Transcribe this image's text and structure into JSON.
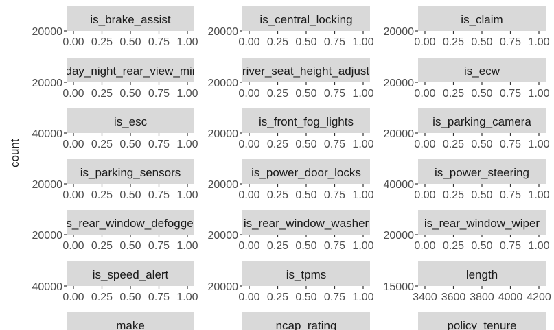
{
  "chart_data": {
    "type": "bar",
    "ylabel": "count",
    "facets": [
      {
        "strip": "is_brake_assist",
        "ytick": "20000",
        "xticks": [
          "0.00",
          "0.25",
          "0.50",
          "0.75",
          "1.00"
        ]
      },
      {
        "strip": "is_central_locking",
        "ytick": "20000",
        "xticks": [
          "0.00",
          "0.25",
          "0.50",
          "0.75",
          "1.00"
        ]
      },
      {
        "strip": "is_claim",
        "ytick": "20000",
        "xticks": [
          "0.00",
          "0.25",
          "0.50",
          "0.75",
          "1.00"
        ]
      },
      {
        "strip": "is_day_night_rear_view_mirror",
        "ytick": "20000",
        "xticks": [
          "0.00",
          "0.25",
          "0.50",
          "0.75",
          "1.00"
        ]
      },
      {
        "strip": "is_driver_seat_height_adjustable",
        "ytick": "20000",
        "xticks": [
          "0.00",
          "0.25",
          "0.50",
          "0.75",
          "1.00"
        ]
      },
      {
        "strip": "is_ecw",
        "ytick": "20000",
        "xticks": [
          "0.00",
          "0.25",
          "0.50",
          "0.75",
          "1.00"
        ]
      },
      {
        "strip": "is_esc",
        "ytick": "40000",
        "xticks": [
          "0.00",
          "0.25",
          "0.50",
          "0.75",
          "1.00"
        ]
      },
      {
        "strip": "is_front_fog_lights",
        "ytick": "20000",
        "xticks": [
          "0.00",
          "0.25",
          "0.50",
          "0.75",
          "1.00"
        ]
      },
      {
        "strip": "is_parking_camera",
        "ytick": "20000",
        "xticks": [
          "0.00",
          "0.25",
          "0.50",
          "0.75",
          "1.00"
        ]
      },
      {
        "strip": "is_parking_sensors",
        "ytick": "20000",
        "xticks": [
          "0.00",
          "0.25",
          "0.50",
          "0.75",
          "1.00"
        ]
      },
      {
        "strip": "is_power_door_locks",
        "ytick": "20000",
        "xticks": [
          "0.00",
          "0.25",
          "0.50",
          "0.75",
          "1.00"
        ]
      },
      {
        "strip": "is_power_steering",
        "ytick": "40000",
        "xticks": [
          "0.00",
          "0.25",
          "0.50",
          "0.75",
          "1.00"
        ]
      },
      {
        "strip": "is_rear_window_defogger",
        "ytick": "20000",
        "xticks": [
          "0.00",
          "0.25",
          "0.50",
          "0.75",
          "1.00"
        ]
      },
      {
        "strip": "is_rear_window_washer",
        "ytick": "20000",
        "xticks": [
          "0.00",
          "0.25",
          "0.50",
          "0.75",
          "1.00"
        ]
      },
      {
        "strip": "is_rear_window_wiper",
        "ytick": "20000",
        "xticks": [
          "0.00",
          "0.25",
          "0.50",
          "0.75",
          "1.00"
        ]
      },
      {
        "strip": "is_speed_alert",
        "ytick": "40000",
        "xticks": [
          "0.00",
          "0.25",
          "0.50",
          "0.75",
          "1.00"
        ]
      },
      {
        "strip": "is_tpms",
        "ytick": "20000",
        "xticks": [
          "0.00",
          "0.25",
          "0.50",
          "0.75",
          "1.00"
        ]
      },
      {
        "strip": "length",
        "ytick": "15000",
        "xticks": [
          "3400",
          "3600",
          "3800",
          "4000",
          "4200"
        ]
      },
      {
        "strip": "make",
        "ytick": "",
        "xticks": []
      },
      {
        "strip": "ncap_rating",
        "ytick": "",
        "xticks": []
      },
      {
        "strip": "policy_tenure",
        "ytick": "",
        "xticks": []
      }
    ]
  },
  "colors": {
    "strip_fill": "#d9d9d9",
    "strip_text": "#1a1a1a",
    "tick_text": "#4d4d4d",
    "tick_line": "#333333"
  }
}
